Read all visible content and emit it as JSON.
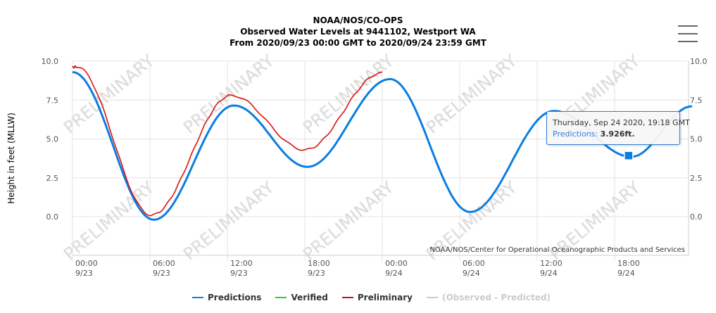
{
  "header": {
    "line1": "NOAA/NOS/CO-OPS",
    "line2": "Observed Water Levels at 9441102, Westport WA",
    "line3": "From 2020/09/23 00:00 GMT to 2020/09/24 23:59 GMT"
  },
  "credit": "NOAA/NOS/Center for Operational Oceanographic Products and Services",
  "watermark": "PRELIMINARY",
  "tooltip": {
    "date": "Thursday, Sep 24 2020, 19:18 GMT",
    "series": "Predictions:",
    "value": "3.926ft."
  },
  "colors": {
    "predictions": "#0a7ee0",
    "verified": "#33cc33",
    "preliminary": "#dd1111",
    "diff": "#cccccc"
  },
  "chart_data": {
    "type": "line",
    "title": "Observed Water Levels at 9441102, Westport WA",
    "xlabel": "",
    "ylabel": "Height in feet (MLLW)",
    "ylim": [
      -2.5,
      10
    ],
    "xlim_hours": [
      0,
      48
    ],
    "yticks": [
      "10.0",
      "7.5",
      "5.0",
      "2.5",
      "0.0"
    ],
    "ytick_values": [
      10,
      7.5,
      5,
      2.5,
      0
    ],
    "xticks": [
      {
        "t": "00:00",
        "d": "9/23",
        "h": 0
      },
      {
        "t": "06:00",
        "d": "9/23",
        "h": 6
      },
      {
        "t": "12:00",
        "d": "9/23",
        "h": 12
      },
      {
        "t": "18:00",
        "d": "9/23",
        "h": 18
      },
      {
        "t": "00:00",
        "d": "9/24",
        "h": 24
      },
      {
        "t": "06:00",
        "d": "9/24",
        "h": 30
      },
      {
        "t": "12:00",
        "d": "9/24",
        "h": 36
      },
      {
        "t": "18:00",
        "d": "9/24",
        "h": 42
      }
    ],
    "series": [
      {
        "name": "Predictions",
        "points_hours_ft": [
          [
            0,
            9.3
          ],
          [
            6.3,
            -0.2
          ],
          [
            12.5,
            7.15
          ],
          [
            18.2,
            3.2
          ],
          [
            24.6,
            8.85
          ],
          [
            30.8,
            0.3
          ],
          [
            37.3,
            6.8
          ],
          [
            43.3,
            3.85
          ],
          [
            48,
            7.1
          ]
        ]
      },
      {
        "name": "Verified",
        "points_hours_ft": []
      },
      {
        "name": "Preliminary",
        "points_hours_ft": [
          [
            0,
            9.6
          ],
          [
            0.3,
            9.65
          ],
          [
            6.1,
            0.1
          ],
          [
            12.3,
            7.8
          ],
          [
            18,
            4.3
          ],
          [
            24,
            9.25
          ]
        ]
      },
      {
        "name": "(Observed - Predicted)",
        "points_hours_ft": []
      }
    ],
    "highlight": {
      "hour": 43.3,
      "value": 3.926
    },
    "legend": [
      "Predictions",
      "Verified",
      "Preliminary",
      "(Observed - Predicted)"
    ],
    "legend_position": "bottom"
  }
}
